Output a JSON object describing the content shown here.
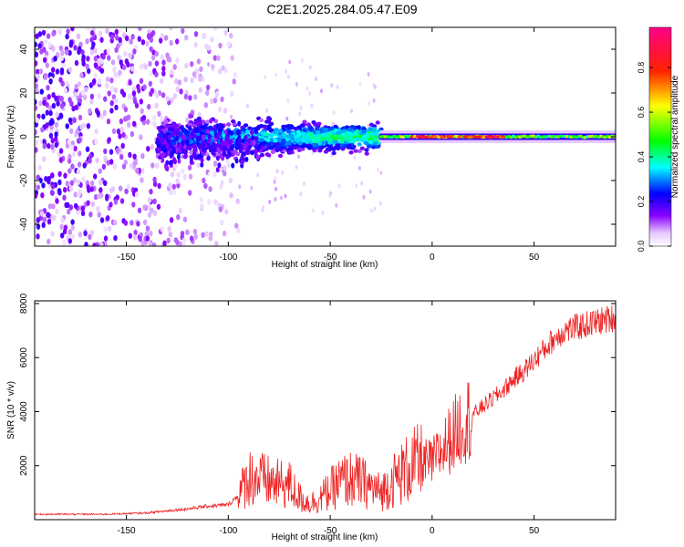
{
  "figure_title": "C2E1.2025.284.05.47.E09",
  "colors": {
    "snr_line": "#ee2222",
    "frame": "#000000",
    "background": "#ffffff"
  },
  "chart_data": [
    {
      "type": "heatmap",
      "title": "C2E1.2025.284.05.47.E09",
      "xlabel": "Height of straight line (km)",
      "ylabel": "Frequency (Hz)",
      "xlim": [
        -195,
        90
      ],
      "ylim": [
        -50,
        50
      ],
      "xticks": [
        -150,
        -100,
        -50,
        0,
        50
      ],
      "yticks": [
        -40,
        -20,
        0,
        20,
        40
      ],
      "colorbar": {
        "label": "Normalized spectral amplitude",
        "range": [
          0,
          0.98
        ],
        "ticks": [
          "0.0",
          "0.2",
          "0.4",
          "0.6",
          "0.8"
        ],
        "colormap": "rainbow (white→purple→blue→cyan→green→yellow→red→pink)"
      },
      "features": {
        "noise_region_x": [
          -195,
          -105
        ],
        "signal_start_x": -135,
        "signal_center_frequency": 0,
        "tone_region_x": [
          -25,
          90
        ],
        "strongest_region_x": [
          -10,
          35
        ],
        "peak_amplitude": 0.98
      }
    },
    {
      "type": "line",
      "series": [
        {
          "name": "SNR",
          "x": [
            -195,
            -180,
            -160,
            -140,
            -120,
            -110,
            -100,
            -95,
            -90,
            -85,
            -80,
            -75,
            -70,
            -65,
            -60,
            -55,
            -50,
            -45,
            -40,
            -35,
            -30,
            -25,
            -20,
            -15,
            -10,
            -5,
            0,
            5,
            10,
            15,
            20,
            25,
            30,
            35,
            40,
            45,
            50,
            55,
            60,
            65,
            70,
            75,
            80,
            85,
            90
          ],
          "y": [
            200,
            200,
            200,
            250,
            400,
            500,
            550,
            900,
            1600,
            1500,
            1400,
            1300,
            1300,
            800,
            600,
            800,
            1100,
            1400,
            1500,
            1400,
            1200,
            1000,
            1400,
            1700,
            2000,
            2100,
            2100,
            2600,
            3100,
            3600,
            3900,
            4200,
            4500,
            4800,
            5200,
            5500,
            5900,
            6300,
            6700,
            7000,
            7100,
            7200,
            7300,
            7400,
            7500
          ]
        }
      ],
      "xlabel": "Height of straight line (km)",
      "ylabel": "SNR (10 * v/v)",
      "xlim": [
        -195,
        90
      ],
      "ylim": [
        0,
        8100
      ],
      "xticks": [
        -150,
        -100,
        -50,
        0,
        50
      ],
      "yticks": [
        2000,
        4000,
        6000,
        8000
      ],
      "grid": false
    }
  ]
}
